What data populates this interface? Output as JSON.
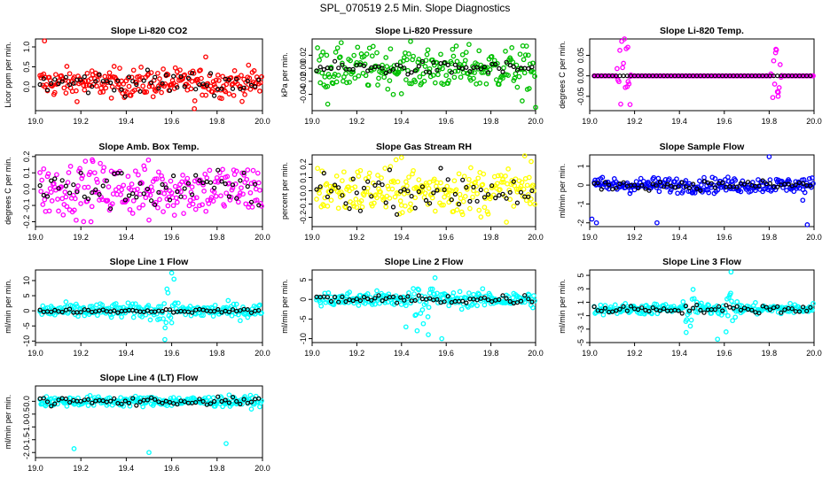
{
  "figure_title": "SPL_070519  2.5 Min. Slope Diagnostics",
  "chart_data": [
    {
      "type": "scatter",
      "title": "Slope Li-820 CO2",
      "xlabel": "",
      "ylabel": "Licor ppm per min.",
      "xlim": [
        19.0,
        20.0
      ],
      "x_ticks": [
        "19.0",
        "19.2",
        "19.4",
        "19.6",
        "19.8",
        "20.0"
      ],
      "ylim": [
        -0.6,
        1.2
      ],
      "y_ticks": [
        {
          "v": 0.0,
          "label": "0.0"
        },
        {
          "v": 0.5,
          "label": "0.5"
        },
        {
          "v": 1.0,
          "label": "1.0"
        }
      ],
      "center": 0.1,
      "spread": 0.18,
      "black_spread": 0.15,
      "n": 240,
      "color": "#ff0000",
      "bursts": [],
      "outliers": [
        [
          19.04,
          1.15
        ],
        [
          19.75,
          0.75
        ],
        [
          19.7,
          -0.55
        ]
      ]
    },
    {
      "type": "scatter",
      "title": "Slope Li-820 Pressure",
      "xlabel": "",
      "ylabel": "kPa per min.",
      "xlim": [
        19.0,
        20.0
      ],
      "x_ticks": [
        "19.0",
        "19.2",
        "19.4",
        "19.6",
        "19.8",
        "20.0"
      ],
      "ylim": [
        -0.065,
        0.045
      ],
      "y_ticks": [
        {
          "v": -0.04,
          "label": "-0.04"
        },
        {
          "v": -0.02,
          "label": "-0.02"
        },
        {
          "v": 0.0,
          "label": "0.00"
        },
        {
          "v": 0.02,
          "label": "0.02"
        }
      ],
      "center": 0.0,
      "spread": 0.016,
      "black_spread": 0.005,
      "n": 240,
      "color": "#00c000",
      "bursts": [],
      "outliers": [
        [
          19.07,
          -0.055
        ],
        [
          20.0,
          -0.06
        ],
        [
          19.94,
          -0.05
        ]
      ]
    },
    {
      "type": "scatter",
      "title": "Slope Li-820 Temp.",
      "xlabel": "",
      "ylabel": "degrees C per min.",
      "xlim": [
        19.0,
        20.0
      ],
      "x_ticks": [
        "19.0",
        "19.2",
        "19.4",
        "19.6",
        "19.8",
        "20.0"
      ],
      "ylim": [
        -0.085,
        0.09
      ],
      "y_ticks": [
        {
          "v": -0.05,
          "label": "-0.05"
        },
        {
          "v": 0.0,
          "label": "0.00"
        },
        {
          "v": 0.05,
          "label": "0.05"
        }
      ],
      "center": 0.0,
      "spread": 0.0,
      "black_spread": 0.0,
      "n": 240,
      "color": "#ff00ff",
      "bursts": [
        [
          19.15,
          0.07,
          0.035
        ],
        [
          19.83,
          0.07,
          0.03
        ]
      ],
      "outliers": [
        [
          19.17,
          0.07
        ],
        [
          19.18,
          -0.07
        ],
        [
          19.83,
          0.065
        ],
        [
          19.84,
          -0.05
        ]
      ]
    },
    {
      "type": "scatter",
      "title": "Slope Amb. Box Temp.",
      "xlabel": "",
      "ylabel": "degrees C per min.",
      "xlim": [
        19.0,
        20.0
      ],
      "x_ticks": [
        "19.0",
        "19.2",
        "19.4",
        "19.6",
        "19.8",
        "20.0"
      ],
      "ylim": [
        -0.23,
        0.21
      ],
      "y_ticks": [
        {
          "v": -0.2,
          "label": "-0.2"
        },
        {
          "v": -0.1,
          "label": "-0.1"
        },
        {
          "v": 0.0,
          "label": "0.0"
        },
        {
          "v": 0.1,
          "label": "0.1"
        },
        {
          "v": 0.2,
          "label": "0.2"
        }
      ],
      "center": 0.0,
      "spread": 0.08,
      "black_spread": 0.06,
      "n": 240,
      "color": "#ff00ff",
      "bursts": [],
      "outliers": [
        [
          19.25,
          0.18
        ],
        [
          19.5,
          -0.19
        ]
      ]
    },
    {
      "type": "scatter",
      "title": "Slope Gas Stream RH",
      "xlabel": "",
      "ylabel": "percent per min.",
      "xlim": [
        19.0,
        20.0
      ],
      "x_ticks": [
        "19.0",
        "19.2",
        "19.4",
        "19.6",
        "19.8",
        "20.0"
      ],
      "ylim": [
        -0.27,
        0.27
      ],
      "y_ticks": [
        {
          "v": -0.2,
          "label": "-0.2"
        },
        {
          "v": -0.1,
          "label": "-0.1"
        },
        {
          "v": 0.0,
          "label": "0.0"
        },
        {
          "v": 0.1,
          "label": "0.1"
        },
        {
          "v": 0.2,
          "label": "0.2"
        }
      ],
      "center": 0.0,
      "spread": 0.09,
      "black_spread": 0.07,
      "n": 240,
      "color": "#ffff00",
      "bursts": [],
      "outliers": [
        [
          19.4,
          0.25
        ],
        [
          19.98,
          0.22
        ]
      ]
    },
    {
      "type": "scatter",
      "title": "Slope Sample Flow",
      "xlabel": "",
      "ylabel": "ml/min per min.",
      "xlim": [
        19.0,
        20.0
      ],
      "x_ticks": [
        "19.0",
        "19.2",
        "19.4",
        "19.6",
        "19.8",
        "20.0"
      ],
      "ylim": [
        -2.2,
        1.6
      ],
      "y_ticks": [
        {
          "v": -2,
          "label": "-2"
        },
        {
          "v": -1,
          "label": "-1"
        },
        {
          "v": 0,
          "label": "0"
        },
        {
          "v": 1,
          "label": "1"
        }
      ],
      "center": 0.0,
      "spread": 0.2,
      "black_spread": 0.12,
      "n": 240,
      "color": "#0000ff",
      "bursts": [],
      "outliers": [
        [
          19.01,
          -1.8
        ],
        [
          19.03,
          -2.0
        ],
        [
          19.3,
          -2.0
        ],
        [
          19.8,
          1.5
        ],
        [
          19.97,
          -2.1
        ],
        [
          19.95,
          -0.8
        ]
      ]
    },
    {
      "type": "scatter",
      "title": "Slope Line 1 Flow",
      "xlabel": "",
      "ylabel": "ml/min per min.",
      "xlim": [
        19.0,
        20.0
      ],
      "x_ticks": [
        "19.0",
        "19.2",
        "19.4",
        "19.6",
        "19.8",
        "20.0"
      ],
      "ylim": [
        -10.5,
        13.5
      ],
      "y_ticks": [
        {
          "v": -10,
          "label": "-10"
        },
        {
          "v": -5,
          "label": "-5"
        },
        {
          "v": 0,
          "label": "0"
        },
        {
          "v": 5,
          "label": "5"
        },
        {
          "v": 10,
          "label": "10"
        }
      ],
      "center": 0.0,
      "spread": 1.2,
      "black_spread": 0.3,
      "n": 240,
      "color": "#00ffff",
      "bursts": [
        [
          19.58,
          4.0,
          0.05
        ]
      ],
      "outliers": [
        [
          19.6,
          12.5
        ],
        [
          19.61,
          10.5
        ],
        [
          19.57,
          -9.5
        ]
      ]
    },
    {
      "type": "scatter",
      "title": "Slope Line 2 Flow",
      "xlabel": "",
      "ylabel": "ml/min per min.",
      "xlim": [
        19.0,
        20.0
      ],
      "x_ticks": [
        "19.0",
        "19.2",
        "19.4",
        "19.6",
        "19.8",
        "20.0"
      ],
      "ylim": [
        -11.0,
        7.5
      ],
      "y_ticks": [
        {
          "v": -10,
          "label": "-10"
        },
        {
          "v": -5,
          "label": "-5"
        },
        {
          "v": 0,
          "label": "0"
        },
        {
          "v": 5,
          "label": "5"
        }
      ],
      "center": 0.0,
      "spread": 1.0,
      "black_spread": 0.6,
      "n": 240,
      "color": "#00ffff",
      "bursts": [
        [
          19.5,
          3.5,
          0.08
        ]
      ],
      "outliers": [
        [
          19.42,
          -7.0
        ],
        [
          19.47,
          -8.0
        ],
        [
          19.55,
          5.5
        ],
        [
          19.58,
          -10.0
        ],
        [
          19.52,
          -9.0
        ]
      ]
    },
    {
      "type": "scatter",
      "title": "Slope Line 3 Flow",
      "xlabel": "",
      "ylabel": "ml/min per min.",
      "xlim": [
        19.0,
        20.0
      ],
      "x_ticks": [
        "19.0",
        "19.2",
        "19.4",
        "19.6",
        "19.8",
        "20.0"
      ],
      "ylim": [
        -5.0,
        5.8
      ],
      "y_ticks": [
        {
          "v": -5,
          "label": "-5"
        },
        {
          "v": -3,
          "label": "-3"
        },
        {
          "v": -1,
          "label": "-1"
        },
        {
          "v": 1,
          "label": "1"
        },
        {
          "v": 3,
          "label": "3"
        },
        {
          "v": 5,
          "label": "5"
        }
      ],
      "center": 0.0,
      "spread": 0.4,
      "black_spread": 0.3,
      "n": 240,
      "color": "#00ffff",
      "bursts": [
        [
          19.45,
          2.0,
          0.04
        ],
        [
          19.62,
          2.5,
          0.04
        ]
      ],
      "outliers": [
        [
          19.43,
          -3.5
        ],
        [
          19.57,
          -4.5
        ],
        [
          19.63,
          5.5
        ]
      ]
    },
    {
      "type": "scatter",
      "title": "Slope Line 4 (LT) Flow",
      "xlabel": "",
      "ylabel": "ml/min per min.",
      "xlim": [
        19.0,
        20.0
      ],
      "x_ticks": [
        "19.0",
        "19.2",
        "19.4",
        "19.6",
        "19.8",
        "20.0"
      ],
      "ylim": [
        -2.2,
        0.6
      ],
      "y_ticks": [
        {
          "v": -2,
          "label": "-2.0"
        },
        {
          "v": -1.5,
          "label": "-1.5"
        },
        {
          "v": -1,
          "label": "-1.0"
        },
        {
          "v": -0.5,
          "label": "-0.5"
        },
        {
          "v": 0,
          "label": "0.0"
        }
      ],
      "center": 0.0,
      "spread": 0.1,
      "black_spread": 0.08,
      "n": 240,
      "color": "#00ffff",
      "bursts": [],
      "outliers": [
        [
          19.17,
          -1.85
        ],
        [
          19.5,
          -2.0
        ],
        [
          19.84,
          -1.65
        ]
      ]
    }
  ]
}
